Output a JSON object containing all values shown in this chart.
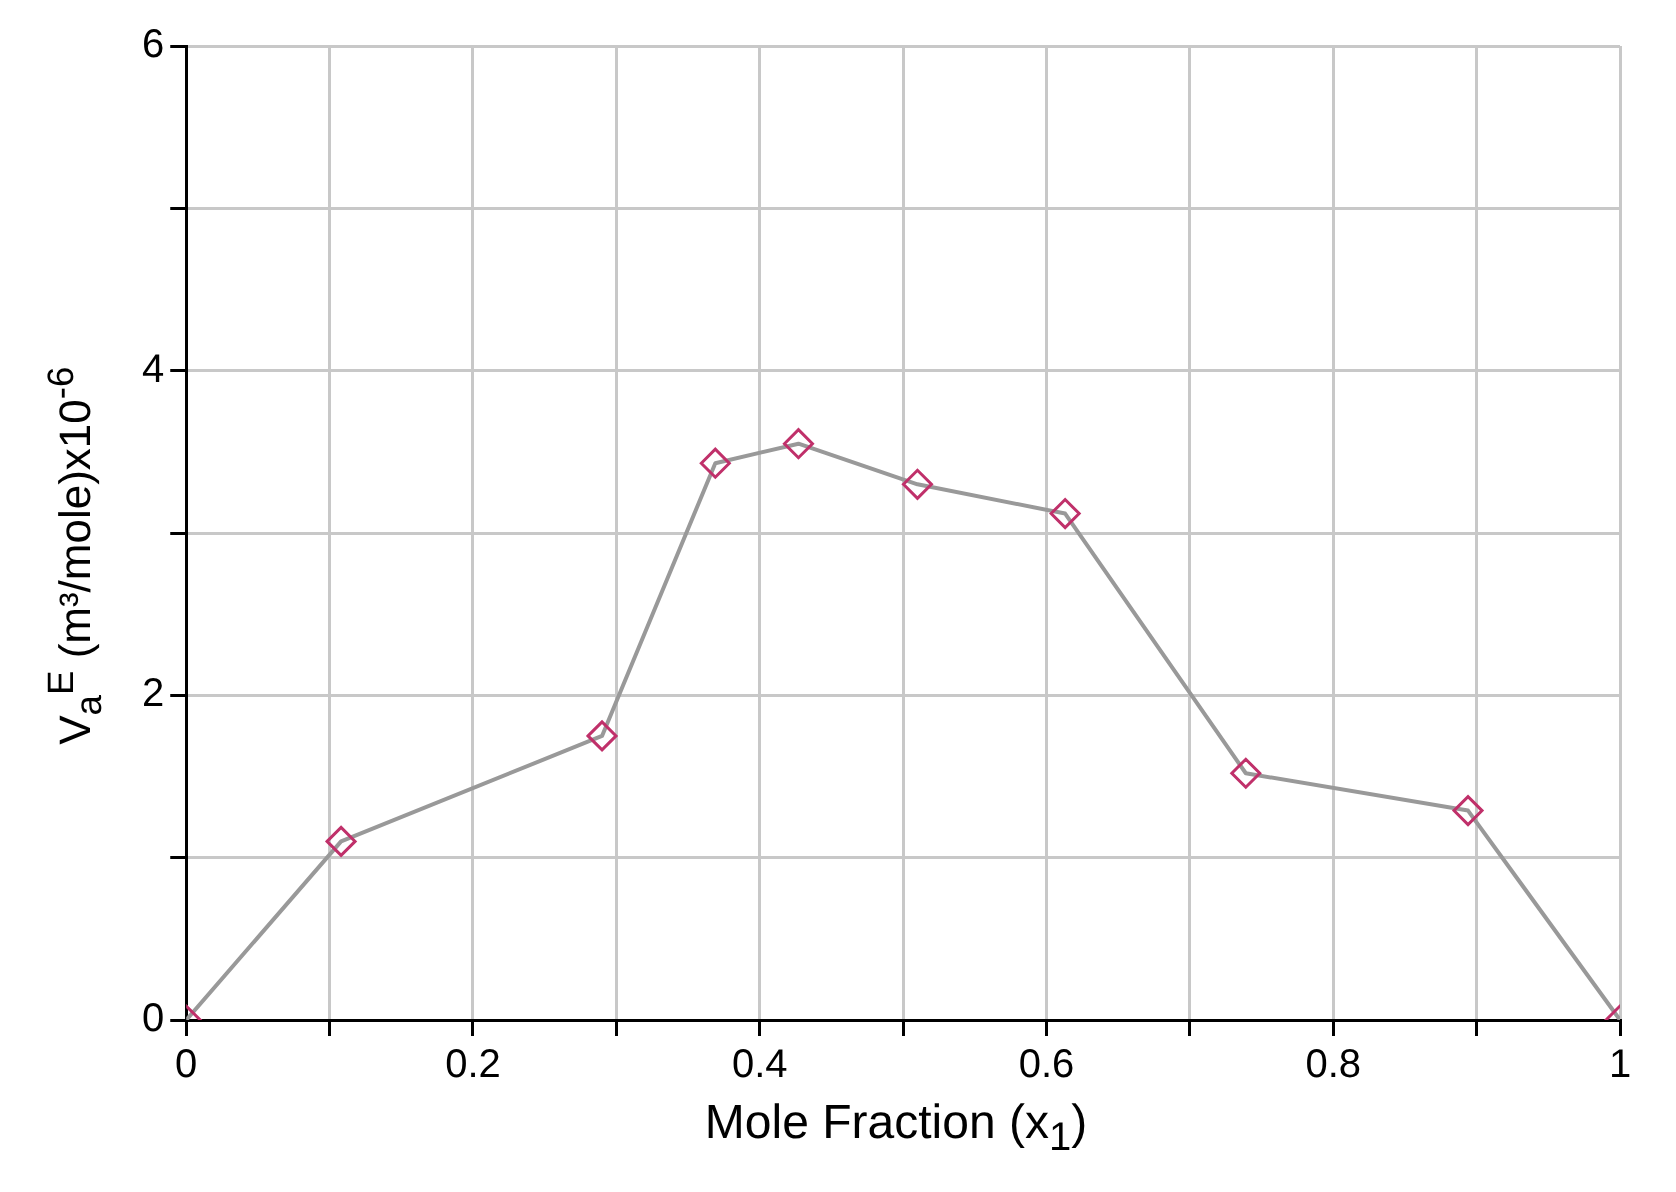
{
  "chart_data": {
    "type": "line",
    "xlabel": "Mole Fraction (x$_{1}$)",
    "ylabel": "V$_{a}$$^{E}$ (m³/mole)x10$^{-6}$",
    "x": [
      0,
      0.108,
      0.29,
      0.369,
      0.427,
      0.51,
      0.613,
      0.739,
      0.894,
      1
    ],
    "series": [
      {
        "color": "#999999",
        "colors": [
          "#c0306a",
          "#c0306a",
          "#c0306a",
          "#c0306a",
          "#c0306a",
          "#c0306a",
          "#c0306a",
          "#c0306a",
          "#c0306a",
          "#c0306a"
        ],
        "values": [
          0,
          1.1,
          1.75,
          3.43,
          3.55,
          3.3,
          3.12,
          1.52,
          1.29,
          0
        ]
      }
    ],
    "xlim": [
      0,
      1
    ],
    "xticks": [
      0,
      {
        "value": 0.1,
        "label": null
      },
      0.2,
      {
        "value": 0.3,
        "label": null
      },
      0.4,
      {
        "value": 0.5,
        "label": null
      },
      0.6,
      {
        "value": 0.7,
        "label": null
      },
      0.8,
      {
        "value": 0.9,
        "label": null
      },
      1
    ],
    "ylim": [
      0,
      6
    ],
    "yticks": [
      0,
      {
        "value": 1,
        "label": null
      },
      2,
      {
        "value": 3,
        "label": null
      },
      4,
      {
        "value": 5,
        "label": null
      },
      6
    ],
    "grid": true,
    "marker": "diamond",
    "line_style": "solid",
    "legend": false
  }
}
